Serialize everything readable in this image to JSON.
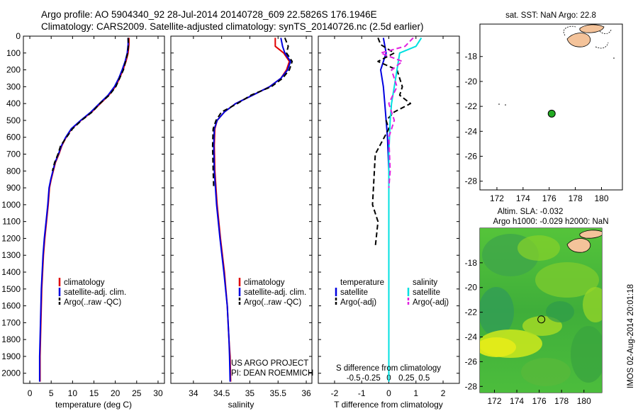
{
  "header": {
    "line1": "Argo profile: AO 5904340_92 28-Jul-2014 20140728_609 22.5826S 176.1946E",
    "line2": "Climatology: CARS2009. Satellite-adjusted climatology: synTS_20140726.nc (2.5d earlier)"
  },
  "colors": {
    "climatology": "#e00000",
    "satellite": "#0000e0",
    "argo": "#000000",
    "salinity_sat": "#00e0e0",
    "salinity_argo": "#e020e0",
    "sst_dot": "#22aa22",
    "land": "#f4c39a"
  },
  "stamp": "IMOS 02-Aug-2014 20:01:18",
  "chart_data": [
    {
      "type": "line",
      "id": "temperature",
      "xlabel": "temperature (deg C)",
      "ylabel": "",
      "xlim": [
        -1.5,
        31.5
      ],
      "ylim": [
        2060,
        0
      ],
      "xticks": [
        0,
        5,
        10,
        15,
        20,
        25,
        30
      ],
      "yticks": [
        0,
        100,
        200,
        300,
        400,
        500,
        600,
        700,
        800,
        900,
        1000,
        1100,
        1200,
        1300,
        1400,
        1500,
        1600,
        1700,
        1800,
        1900,
        2000
      ],
      "legend": [
        "climatology",
        "satellite-adj. clim.",
        "Argo(..raw -QC)"
      ],
      "series": [
        {
          "name": "climatology",
          "style": "solid",
          "x": [
            23.2,
            23.2,
            23.0,
            22.5,
            21.8,
            21.0,
            20.0,
            18.5,
            16.5,
            14.5,
            12.0,
            9.8,
            8.5,
            7.5,
            6.8,
            6.0,
            5.5,
            5.0,
            4.6,
            4.3,
            3.9,
            3.5,
            3.2,
            3.0,
            2.8,
            2.7,
            2.6,
            2.5,
            2.4,
            2.4
          ],
          "y": [
            10,
            50,
            100,
            150,
            200,
            250,
            300,
            350,
            400,
            450,
            500,
            550,
            600,
            650,
            700,
            750,
            800,
            850,
            900,
            1000,
            1100,
            1200,
            1300,
            1400,
            1500,
            1600,
            1700,
            1800,
            1900,
            2050
          ]
        },
        {
          "name": "satellite-adj. clim.",
          "style": "solid",
          "x": [
            23.0,
            23.0,
            22.8,
            22.3,
            21.6,
            20.8,
            19.8,
            18.3,
            16.3,
            14.3,
            11.9,
            9.7,
            8.4,
            7.4,
            6.7,
            5.9,
            5.4,
            4.9,
            4.5,
            4.2,
            3.8,
            3.4,
            3.1,
            2.9,
            2.7,
            2.6,
            2.5,
            2.4,
            2.3,
            2.3
          ],
          "y": [
            10,
            50,
            100,
            150,
            200,
            250,
            300,
            350,
            400,
            450,
            500,
            550,
            600,
            650,
            700,
            750,
            800,
            850,
            900,
            1000,
            1100,
            1200,
            1300,
            1400,
            1500,
            1600,
            1700,
            1800,
            1900,
            2050
          ]
        },
        {
          "name": "Argo(..raw -QC)",
          "style": "dashed",
          "x": [
            23.0,
            23.1,
            22.9,
            22.4,
            21.9,
            21.0,
            20.1,
            18.6,
            16.4,
            14.6,
            12.1,
            10.0,
            8.6,
            7.2,
            6.6,
            5.8,
            5.3
          ],
          "y": [
            10,
            50,
            100,
            150,
            200,
            250,
            300,
            350,
            400,
            450,
            500,
            550,
            600,
            650,
            700,
            750,
            800
          ]
        }
      ]
    },
    {
      "type": "line",
      "id": "salinity",
      "xlabel": "salinity",
      "ylabel": "",
      "xlim": [
        33.6,
        36.1
      ],
      "ylim": [
        2060,
        0
      ],
      "xticks": [
        34,
        34.5,
        35,
        35.5,
        36
      ],
      "legend": [
        "climatology",
        "satellite-adj. clim.",
        "Argo(..raw -QC)"
      ],
      "series": [
        {
          "name": "climatology",
          "style": "solid",
          "x": [
            35.45,
            35.45,
            35.6,
            35.7,
            35.65,
            35.55,
            35.35,
            35.05,
            34.75,
            34.55,
            34.42,
            34.38,
            34.37,
            34.38,
            34.42,
            34.48,
            34.55,
            34.6,
            34.63,
            34.65,
            34.66
          ],
          "y": [
            10,
            60,
            100,
            150,
            200,
            250,
            300,
            350,
            400,
            450,
            500,
            550,
            650,
            800,
            1000,
            1200,
            1400,
            1600,
            1800,
            1900,
            2050
          ]
        },
        {
          "name": "satellite-adj. clim.",
          "style": "solid",
          "x": [
            35.55,
            35.58,
            35.62,
            35.72,
            35.67,
            35.55,
            35.35,
            35.05,
            34.75,
            34.55,
            34.42,
            34.37,
            34.36,
            34.37,
            34.41,
            34.47,
            34.54,
            34.6,
            34.63,
            34.64,
            34.65
          ],
          "y": [
            10,
            60,
            100,
            150,
            200,
            250,
            300,
            350,
            400,
            450,
            500,
            550,
            650,
            800,
            1000,
            1200,
            1400,
            1600,
            1800,
            1900,
            2050
          ]
        },
        {
          "name": "Argo(..raw -QC)",
          "style": "dashed",
          "x": [
            35.62,
            35.68,
            35.65,
            35.75,
            35.7,
            35.58,
            35.38,
            35.02,
            34.78,
            34.5,
            34.4,
            34.35,
            34.34,
            34.35,
            34.36
          ],
          "y": [
            10,
            60,
            100,
            150,
            200,
            250,
            300,
            350,
            400,
            450,
            500,
            550,
            650,
            800,
            900
          ]
        }
      ]
    },
    {
      "type": "line",
      "id": "difference",
      "xlabel": "T difference from climatology",
      "xlabel2": "S difference from climatology",
      "xlim": [
        -2.6,
        2.6
      ],
      "ylim": [
        2060,
        0
      ],
      "xticks": [
        -2,
        -1,
        0,
        1,
        2
      ],
      "xticks_top": [
        "-0.5",
        "-0.25",
        "0",
        "0.25",
        "0.5"
      ],
      "legend_temperature": {
        "title": "temperature",
        "items": [
          "satellite",
          "Argo(-adj)"
        ]
      },
      "legend_salinity": {
        "title": "salinity",
        "items": [
          "satellite",
          "Argo(-adj)"
        ]
      },
      "series": [
        {
          "name": "temperature satellite",
          "style": "solid",
          "x": [
            -0.2,
            -0.1,
            -0.3,
            -0.2,
            -0.15,
            -0.1,
            -0.05,
            0.0,
            0.0,
            0.0,
            0.0,
            0.0,
            0.0
          ],
          "y": [
            10,
            100,
            200,
            300,
            400,
            500,
            600,
            800,
            1000,
            1300,
            1600,
            1900,
            2050
          ]
        },
        {
          "name": "temperature Argo(-adj)",
          "style": "dashed",
          "x": [
            -0.4,
            -0.3,
            0.2,
            -0.4,
            0.3,
            0.5,
            0.4,
            0.8,
            0.2,
            -0.1,
            0.0,
            -0.5,
            -0.6,
            -0.4,
            -0.5
          ],
          "y": [
            10,
            50,
            100,
            150,
            200,
            300,
            350,
            400,
            450,
            500,
            550,
            700,
            1000,
            1100,
            1250
          ]
        },
        {
          "name": "salinity satellite",
          "style": "solid",
          "x": [
            1.2,
            1.0,
            0.4,
            0.3,
            0.2,
            0.1,
            0.05,
            0.0,
            0.0,
            0.0,
            0.0,
            0.0
          ],
          "y": [
            10,
            60,
            100,
            200,
            300,
            400,
            500,
            700,
            1000,
            1400,
            1800,
            2050
          ]
        },
        {
          "name": "salinity Argo(-adj)",
          "style": "dashed",
          "x": [
            0.9,
            0.6,
            -0.3,
            0.5,
            0.1,
            0.3,
            0.0,
            0.2,
            0.0,
            0.05,
            0.0
          ],
          "y": [
            10,
            60,
            100,
            150,
            200,
            300,
            400,
            500,
            600,
            800,
            900
          ]
        }
      ],
      "annotation": [
        "US ARGO PROJECT",
        "PI: DEAN ROEMMICH"
      ]
    },
    {
      "type": "scatter",
      "id": "sst-map",
      "title": "sat. SST: NaN Argo: 22.8",
      "xlim": [
        170.7,
        181.6
      ],
      "ylim": [
        -28.7,
        -15.4
      ],
      "xticks": [
        172,
        174,
        176,
        178,
        180
      ],
      "yticks": [
        -18,
        -20,
        -22,
        -24,
        -26,
        -28
      ],
      "point": {
        "lon": 176.19,
        "lat": -22.58
      }
    },
    {
      "type": "heatmap",
      "id": "sla-map",
      "title": "Altim. SLA: -0.032",
      "subtitle": "Argo h1000: -0.029 h2000: NaN",
      "xlim": [
        170.7,
        181.6
      ],
      "ylim": [
        -28.5,
        -15.2
      ],
      "xticks": [
        172,
        174,
        176,
        178,
        180
      ],
      "yticks": [
        -18,
        -20,
        -22,
        -24,
        -26,
        -28
      ],
      "point": {
        "lon": 176.19,
        "lat": -22.58
      }
    }
  ]
}
